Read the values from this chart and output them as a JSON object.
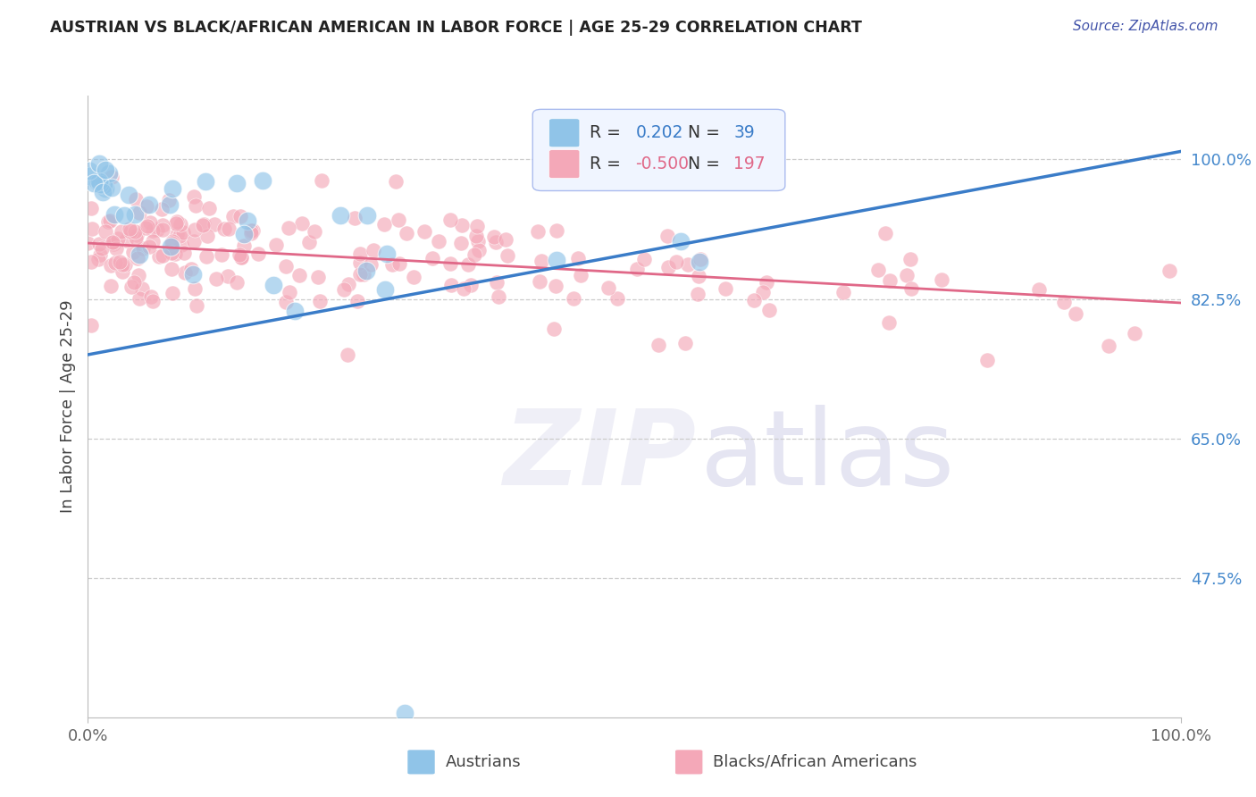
{
  "title": "AUSTRIAN VS BLACK/AFRICAN AMERICAN IN LABOR FORCE | AGE 25-29 CORRELATION CHART",
  "source": "Source: ZipAtlas.com",
  "ylabel": "In Labor Force | Age 25-29",
  "xlim": [
    0.0,
    1.0
  ],
  "ylim": [
    0.3,
    1.08
  ],
  "yticks": [
    0.475,
    0.65,
    0.825,
    1.0
  ],
  "ytick_labels": [
    "47.5%",
    "65.0%",
    "82.5%",
    "100.0%"
  ],
  "xtick_labels": [
    "0.0%",
    "100.0%"
  ],
  "xticks": [
    0.0,
    1.0
  ],
  "blue_R": 0.202,
  "blue_N": 39,
  "pink_R": -0.5,
  "pink_N": 197,
  "blue_color": "#90C4E8",
  "pink_color": "#F4A8B8",
  "blue_line_color": "#3A7CC8",
  "pink_line_color": "#E06888",
  "title_color": "#222222",
  "source_color": "#4455AA",
  "axis_label_color": "#444444",
  "ytick_color": "#4488CC",
  "xtick_color": "#666666",
  "grid_color": "#CCCCCC",
  "blue_seed": 7,
  "pink_seed": 13,
  "blue_line_x0": 0.0,
  "blue_line_y0": 0.755,
  "blue_line_x1": 1.0,
  "blue_line_y1": 1.01,
  "pink_line_x0": 0.0,
  "pink_line_y0": 0.895,
  "pink_line_x1": 1.0,
  "pink_line_y1": 0.82
}
